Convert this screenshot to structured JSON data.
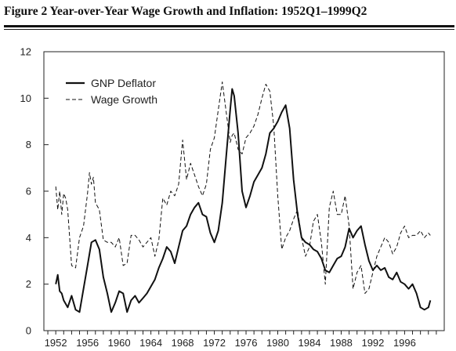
{
  "figure": {
    "title": "Figure 2  Year-over-Year Wage Growth and Inflation:  1952Q1–1999Q2"
  },
  "chart_data": {
    "type": "line",
    "title": "Figure 2  Year-over-Year Wage Growth and Inflation:  1952Q1–1999Q2",
    "xlabel": "",
    "ylabel": "",
    "xlim": [
      1950.5,
      2001.0
    ],
    "ylim": [
      0,
      12
    ],
    "grid": false,
    "legend_position": "top-left",
    "x_ticks": [
      1952,
      1956,
      1960,
      1964,
      1968,
      1972,
      1976,
      1980,
      1984,
      1988,
      1992,
      1996
    ],
    "x_minor_ticks": [
      1951,
      1952,
      1953,
      1954,
      1955,
      1956,
      1957,
      1958,
      1959,
      1960,
      1961,
      1962,
      1963,
      1964,
      1965,
      1966,
      1967,
      1968,
      1969,
      1970,
      1971,
      1972,
      1973,
      1974,
      1975,
      1976,
      1977,
      1978,
      1979,
      1980,
      1981,
      1982,
      1983,
      1984,
      1985,
      1986,
      1987,
      1988,
      1989,
      1990,
      1991,
      1992,
      1993,
      1994,
      1995,
      1996,
      1997,
      1998,
      1999,
      2000
    ],
    "y_ticks": [
      0,
      2,
      4,
      6,
      8,
      10,
      12
    ],
    "series": [
      {
        "name": "GNP Deflator",
        "style": "solid",
        "color": "#111111",
        "x": [
          1952.0,
          1952.25,
          1952.5,
          1952.75,
          1953.0,
          1953.5,
          1954.0,
          1954.5,
          1955.0,
          1955.5,
          1956.0,
          1956.5,
          1957.0,
          1957.5,
          1958.0,
          1958.5,
          1959.0,
          1959.5,
          1960.0,
          1960.5,
          1961.0,
          1961.5,
          1962.0,
          1962.5,
          1963.0,
          1963.5,
          1964.0,
          1964.5,
          1965.0,
          1965.5,
          1966.0,
          1966.5,
          1967.0,
          1967.5,
          1968.0,
          1968.5,
          1969.0,
          1969.5,
          1970.0,
          1970.5,
          1971.0,
          1971.5,
          1972.0,
          1972.5,
          1973.0,
          1973.5,
          1974.0,
          1974.25,
          1974.5,
          1975.0,
          1975.5,
          1976.0,
          1976.5,
          1977.0,
          1977.5,
          1978.0,
          1978.5,
          1979.0,
          1979.5,
          1980.0,
          1980.5,
          1981.0,
          1981.5,
          1982.0,
          1982.5,
          1983.0,
          1983.5,
          1984.0,
          1984.5,
          1985.0,
          1985.5,
          1986.0,
          1986.5,
          1987.0,
          1987.5,
          1988.0,
          1988.5,
          1989.0,
          1989.5,
          1990.0,
          1990.5,
          1991.0,
          1991.5,
          1992.0,
          1992.5,
          1993.0,
          1993.5,
          1994.0,
          1994.5,
          1995.0,
          1995.5,
          1996.0,
          1996.5,
          1997.0,
          1997.5,
          1998.0,
          1998.5,
          1999.0,
          1999.25
        ],
        "values": [
          2.0,
          2.4,
          1.7,
          1.6,
          1.3,
          1.0,
          1.5,
          0.9,
          0.8,
          1.8,
          2.8,
          3.8,
          3.9,
          3.5,
          2.3,
          1.6,
          0.8,
          1.2,
          1.7,
          1.6,
          0.8,
          1.3,
          1.5,
          1.2,
          1.4,
          1.6,
          1.9,
          2.2,
          2.7,
          3.1,
          3.6,
          3.4,
          2.9,
          3.6,
          4.3,
          4.5,
          5.0,
          5.3,
          5.5,
          5.0,
          4.9,
          4.2,
          3.8,
          4.3,
          5.5,
          7.5,
          9.5,
          10.4,
          10.1,
          8.5,
          6.0,
          5.3,
          5.8,
          6.4,
          6.7,
          7.0,
          7.6,
          8.5,
          8.7,
          9.0,
          9.4,
          9.7,
          8.7,
          6.5,
          5.0,
          4.0,
          3.8,
          3.7,
          3.5,
          3.4,
          3.1,
          2.6,
          2.5,
          2.8,
          3.1,
          3.2,
          3.6,
          4.4,
          4.0,
          4.3,
          4.5,
          3.7,
          3.0,
          2.6,
          2.8,
          2.6,
          2.7,
          2.3,
          2.2,
          2.5,
          2.1,
          2.0,
          1.8,
          2.0,
          1.6,
          1.0,
          0.9,
          1.0,
          1.3
        ]
      },
      {
        "name": "Wage Growth",
        "style": "dashed",
        "color": "#111111",
        "x": [
          1952.0,
          1952.25,
          1952.5,
          1952.75,
          1953.0,
          1953.25,
          1953.5,
          1954.0,
          1954.5,
          1955.0,
          1955.5,
          1956.0,
          1956.25,
          1956.5,
          1956.75,
          1957.0,
          1957.5,
          1958.0,
          1958.5,
          1959.0,
          1959.5,
          1960.0,
          1960.5,
          1961.0,
          1961.5,
          1962.0,
          1962.5,
          1963.0,
          1963.5,
          1964.0,
          1964.5,
          1965.0,
          1965.5,
          1966.0,
          1966.5,
          1967.0,
          1967.5,
          1968.0,
          1968.5,
          1969.0,
          1969.5,
          1970.0,
          1970.5,
          1971.0,
          1971.5,
          1972.0,
          1972.5,
          1973.0,
          1973.5,
          1974.0,
          1974.25,
          1974.5,
          1975.0,
          1975.5,
          1976.0,
          1976.5,
          1977.0,
          1977.5,
          1978.0,
          1978.5,
          1979.0,
          1979.5,
          1980.0,
          1980.5,
          1981.0,
          1981.5,
          1982.0,
          1982.5,
          1983.0,
          1983.5,
          1984.0,
          1984.5,
          1985.0,
          1985.5,
          1986.0,
          1986.5,
          1987.0,
          1987.5,
          1988.0,
          1988.5,
          1989.0,
          1989.5,
          1990.0,
          1990.5,
          1991.0,
          1991.5,
          1992.0,
          1992.5,
          1993.0,
          1993.5,
          1994.0,
          1994.5,
          1995.0,
          1995.5,
          1996.0,
          1996.5,
          1997.0,
          1997.5,
          1998.0,
          1998.5,
          1999.0,
          1999.25
        ],
        "values": [
          6.2,
          5.2,
          6.0,
          5.0,
          5.9,
          5.7,
          5.2,
          2.8,
          2.7,
          4.0,
          4.5,
          5.9,
          6.8,
          6.3,
          6.6,
          5.5,
          5.2,
          3.9,
          3.8,
          3.8,
          3.6,
          4.0,
          2.8,
          2.9,
          4.1,
          4.1,
          3.9,
          3.6,
          3.8,
          4.0,
          3.2,
          3.9,
          5.7,
          5.4,
          6.0,
          5.8,
          6.3,
          8.2,
          6.5,
          7.2,
          6.7,
          6.2,
          5.8,
          6.3,
          7.8,
          8.3,
          9.5,
          10.7,
          9.4,
          8.1,
          8.4,
          8.5,
          7.8,
          7.6,
          8.3,
          8.5,
          8.8,
          9.3,
          10.0,
          10.6,
          10.3,
          8.8,
          5.8,
          3.5,
          4.0,
          4.3,
          4.8,
          5.2,
          4.0,
          3.2,
          3.6,
          4.7,
          5.0,
          3.8,
          2.0,
          5.3,
          6.0,
          5.0,
          5.0,
          5.8,
          4.5,
          1.8,
          2.5,
          2.8,
          1.6,
          1.8,
          2.5,
          3.2,
          3.6,
          4.0,
          3.8,
          3.3,
          3.6,
          4.2,
          4.5,
          4.0,
          4.1,
          4.1,
          4.3,
          4.0,
          4.2,
          4.1
        ]
      }
    ]
  }
}
